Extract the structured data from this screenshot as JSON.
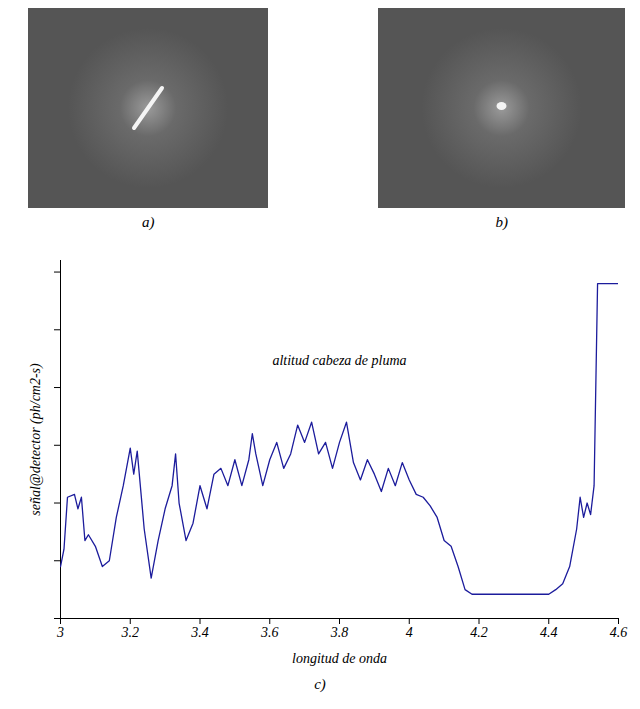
{
  "images": [
    "a)",
    "b)"
  ],
  "chart_data": {
    "type": "line",
    "caption": "c)",
    "annotation": "altitud cabeza de pluma",
    "x_label": "longitud de onda",
    "y_label": "señal@detector (ph/cm2-s)",
    "color": "#1c1c9c",
    "xlim": [
      3,
      4.6
    ],
    "xticks": [
      3,
      3.2,
      3.4,
      3.6,
      3.8,
      4,
      4.2,
      4.4,
      4.6
    ],
    "ylim": [
      0,
      6.2
    ],
    "yticks": [
      0,
      1,
      2,
      3,
      4,
      5,
      6
    ],
    "tick_labels": "x",
    "x": [
      3.0,
      3.01,
      3.02,
      3.04,
      3.05,
      3.06,
      3.07,
      3.08,
      3.1,
      3.12,
      3.14,
      3.16,
      3.18,
      3.2,
      3.21,
      3.22,
      3.24,
      3.26,
      3.28,
      3.3,
      3.32,
      3.33,
      3.34,
      3.36,
      3.38,
      3.4,
      3.42,
      3.44,
      3.46,
      3.48,
      3.5,
      3.52,
      3.54,
      3.55,
      3.56,
      3.58,
      3.6,
      3.62,
      3.64,
      3.66,
      3.68,
      3.7,
      3.72,
      3.74,
      3.76,
      3.78,
      3.8,
      3.82,
      3.84,
      3.86,
      3.88,
      3.9,
      3.92,
      3.94,
      3.96,
      3.98,
      4.0,
      4.02,
      4.04,
      4.06,
      4.08,
      4.1,
      4.12,
      4.14,
      4.16,
      4.18,
      4.2,
      4.3,
      4.4,
      4.42,
      4.44,
      4.46,
      4.48,
      4.49,
      4.5,
      4.51,
      4.52,
      4.53,
      4.54,
      4.6
    ],
    "values": [
      0.9,
      1.2,
      2.1,
      2.15,
      1.9,
      2.1,
      1.35,
      1.45,
      1.25,
      0.9,
      1.0,
      1.75,
      2.3,
      2.95,
      2.5,
      2.9,
      1.55,
      0.7,
      1.35,
      1.9,
      2.3,
      2.85,
      2.0,
      1.35,
      1.65,
      2.3,
      1.9,
      2.5,
      2.6,
      2.3,
      2.75,
      2.3,
      2.75,
      3.2,
      2.85,
      2.3,
      2.75,
      3.05,
      2.6,
      2.85,
      3.35,
      3.05,
      3.4,
      2.85,
      3.05,
      2.6,
      3.05,
      3.4,
      2.7,
      2.4,
      2.75,
      2.5,
      2.2,
      2.6,
      2.3,
      2.7,
      2.4,
      2.15,
      2.1,
      1.95,
      1.75,
      1.35,
      1.25,
      0.9,
      0.5,
      0.42,
      0.42,
      0.42,
      0.42,
      0.5,
      0.6,
      0.9,
      1.55,
      2.1,
      1.75,
      2.0,
      1.8,
      2.3,
      5.8,
      5.8
    ]
  }
}
